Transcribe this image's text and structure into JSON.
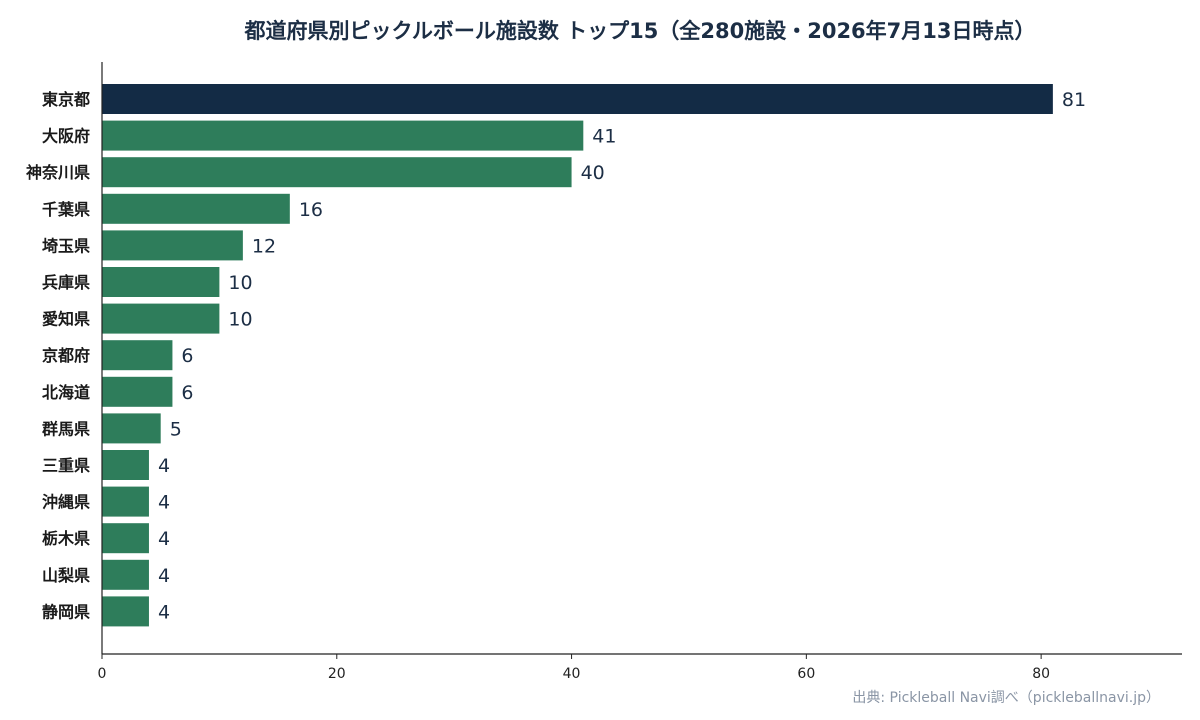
{
  "chart_data": {
    "type": "bar",
    "orientation": "horizontal",
    "title": "都道府県別ピックルボール施設数 トップ15（全280施設・2026年7月13日時点）",
    "categories": [
      "東京都",
      "大阪府",
      "神奈川県",
      "千葉県",
      "埼玉県",
      "兵庫県",
      "愛知県",
      "京都府",
      "北海道",
      "群馬県",
      "三重県",
      "沖縄県",
      "栃木県",
      "山梨県",
      "静岡県"
    ],
    "values": [
      81,
      41,
      40,
      16,
      12,
      10,
      10,
      6,
      6,
      5,
      4,
      4,
      4,
      4,
      4
    ],
    "xlim": [
      0,
      92
    ],
    "x_ticks": [
      0,
      20,
      40,
      60,
      80
    ],
    "grid": false,
    "highlight_index": 0,
    "colors": {
      "highlight": "#132b45",
      "bar": "#2e7d5b",
      "axis": "#222222",
      "title": "#1c2e45",
      "source": "#8a95a5"
    },
    "source": "出典: Pickleball Navi調べ（pickleballnavi.jp）"
  }
}
